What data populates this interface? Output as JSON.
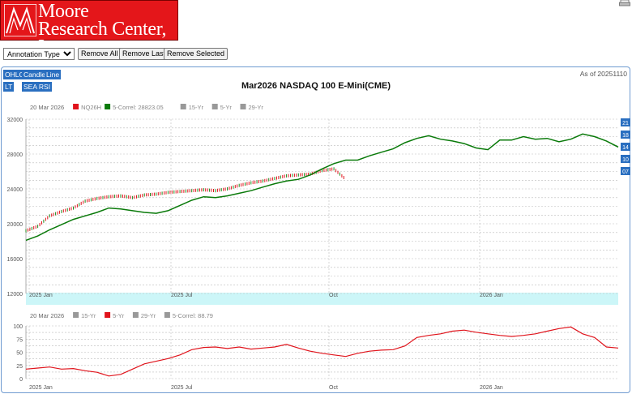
{
  "header": {
    "logo_line1": "Moore",
    "logo_line2": "Research Center, Inc."
  },
  "toolbar": {
    "annotation_select": "Annotation Type",
    "remove_all": "Remove All",
    "remove_last": "Remove Last",
    "remove_selected": "Remove Selected"
  },
  "chart_tools": {
    "ohlc": "OHLC",
    "candle": "Candle",
    "line": "Line",
    "lt": "LT",
    "sea_rsi": "SEA RSI"
  },
  "as_of": "As of 20251110",
  "title": "Mar2026 NASDAQ 100 E-Mini(CME)",
  "colors": {
    "price_up": "#1a8a1a",
    "price_down": "#e0141c",
    "correl": "#0a7a0a",
    "fiveyr": "#e0141c",
    "legend_gray": "#999999",
    "tools_bg": "#2a6fc0",
    "band": "#ccf6f8"
  },
  "chart_data": [
    {
      "type": "line",
      "title": "Mar2026 NASDAQ 100 E-Mini(CME)",
      "legend": {
        "date": "20 Mar 2026",
        "items": [
          {
            "label": "NQ26H",
            "color": "#e0141c"
          },
          {
            "label": "5-Correl: 28823.05",
            "color": "#0a7a0a"
          },
          {
            "label": "15-Yr",
            "color": "#999999"
          },
          {
            "label": "5-Yr",
            "color": "#999999"
          },
          {
            "label": "29-Yr",
            "color": "#999999"
          }
        ]
      },
      "ylim": [
        12000,
        32000
      ],
      "yticks": [
        12000,
        16000,
        20000,
        24000,
        28000,
        32000
      ],
      "x_ticks": [
        "2025 Jan",
        "2025 Jul",
        "Oct",
        "2026 Jan"
      ],
      "right_labels": [
        "21",
        "18",
        "14",
        "10",
        "07"
      ],
      "series": [
        {
          "name": "5-Correl: 28823.05",
          "x": [
            0,
            2,
            4,
            6,
            8,
            10,
            12,
            14,
            16,
            18,
            20,
            22,
            24,
            26,
            28,
            30,
            32,
            34,
            36,
            38,
            40,
            42,
            44,
            46,
            48,
            50,
            52,
            54,
            56,
            58,
            60,
            62,
            64,
            66,
            68,
            70,
            72,
            74,
            76,
            78,
            80,
            82,
            84,
            86,
            88,
            90,
            92,
            94,
            96,
            98,
            100
          ],
          "values": [
            18100,
            18600,
            19300,
            19900,
            20500,
            20900,
            21300,
            21800,
            21700,
            21500,
            21300,
            21200,
            21500,
            22100,
            22700,
            23100,
            23000,
            23200,
            23500,
            23800,
            24200,
            24600,
            24900,
            25100,
            25600,
            26300,
            26900,
            27300,
            27300,
            27800,
            28200,
            28600,
            29300,
            29800,
            30100,
            29700,
            29500,
            29200,
            28700,
            28500,
            29600,
            29600,
            30000,
            29700,
            29800,
            29400,
            29700,
            30300,
            30000,
            29500,
            28800
          ]
        },
        {
          "name": "NQ26H",
          "x": [
            0,
            2,
            4,
            6,
            8,
            10,
            12,
            14,
            16,
            18,
            20,
            22,
            24,
            26,
            28,
            30,
            32,
            34,
            36,
            38,
            40,
            42,
            44,
            46,
            48,
            50,
            52,
            54
          ],
          "values": [
            19200,
            19700,
            20900,
            21400,
            21800,
            22600,
            22900,
            23100,
            23200,
            23000,
            23300,
            23400,
            23600,
            23700,
            23800,
            23900,
            23800,
            24000,
            24400,
            24700,
            24900,
            25200,
            25500,
            25600,
            25700,
            26100,
            26300,
            25100
          ]
        }
      ]
    },
    {
      "type": "line",
      "legend": {
        "date": "20 Mar 2026",
        "items": [
          {
            "label": "15-Yr",
            "color": "#999999"
          },
          {
            "label": "5-Yr",
            "color": "#e0141c"
          },
          {
            "label": "29-Yr",
            "color": "#999999"
          },
          {
            "label": "5-Correl: 88.79",
            "color": "#999999"
          }
        ]
      },
      "ylim": [
        0,
        100
      ],
      "yticks": [
        0,
        25,
        50,
        75,
        100
      ],
      "x_ticks": [
        "2025 Jan",
        "2025 Jul",
        "Oct",
        "2026 Jan"
      ],
      "series": [
        {
          "name": "5-Yr",
          "x": [
            0,
            2,
            4,
            6,
            8,
            10,
            12,
            14,
            16,
            18,
            20,
            22,
            24,
            26,
            28,
            30,
            32,
            34,
            36,
            38,
            40,
            42,
            44,
            46,
            48,
            50,
            52,
            54,
            56,
            58,
            60,
            62,
            64,
            66,
            68,
            70,
            72,
            74,
            76,
            78,
            80,
            82,
            84,
            86,
            88,
            90,
            92,
            94,
            96,
            98,
            100
          ],
          "values": [
            18,
            20,
            22,
            18,
            19,
            15,
            12,
            5,
            8,
            18,
            28,
            33,
            38,
            45,
            55,
            59,
            60,
            57,
            60,
            56,
            58,
            60,
            65,
            58,
            52,
            48,
            45,
            42,
            48,
            52,
            54,
            55,
            62,
            78,
            82,
            85,
            90,
            92,
            88,
            85,
            82,
            80,
            82,
            85,
            90,
            95,
            98,
            85,
            78,
            60,
            58
          ]
        }
      ]
    }
  ]
}
